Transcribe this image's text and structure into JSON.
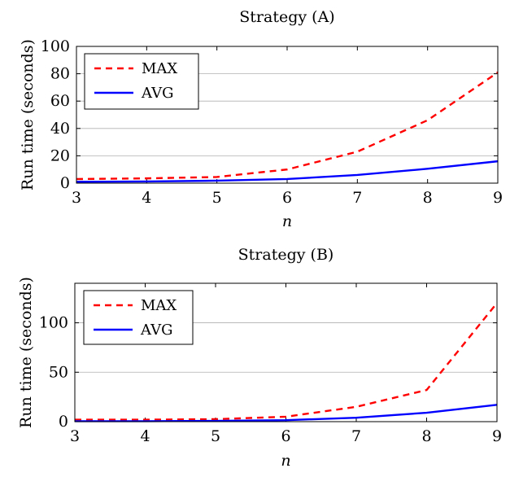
{
  "chart_data": [
    {
      "type": "line",
      "title": "Strategy (A)",
      "xlabel": "n",
      "ylabel": "Run time (seconds)",
      "x": [
        3,
        4,
        5,
        6,
        7,
        8,
        9
      ],
      "xlim": [
        3,
        9
      ],
      "ylim": [
        0,
        100
      ],
      "xticks": [
        "3",
        "4",
        "5",
        "6",
        "7",
        "8",
        "9"
      ],
      "yticks": [
        "0",
        "20",
        "40",
        "60",
        "80",
        "100"
      ],
      "ytick_values": [
        0,
        20,
        40,
        60,
        80,
        100
      ],
      "grid": "horizontal",
      "legend_position": "top-left",
      "series": [
        {
          "name": "MAX",
          "values": [
            3,
            3.5,
            4.5,
            10,
            23,
            46,
            81
          ],
          "color": "#ff0000",
          "style": "dashed"
        },
        {
          "name": "AVG",
          "values": [
            1,
            1.2,
            1.8,
            3,
            6,
            10.5,
            16
          ],
          "color": "#0000ff",
          "style": "solid"
        }
      ]
    },
    {
      "type": "line",
      "title": "Strategy (B)",
      "xlabel": "n",
      "ylabel": "Run time (seconds)",
      "x": [
        3,
        4,
        5,
        6,
        7,
        8,
        9
      ],
      "xlim": [
        3,
        9
      ],
      "ylim": [
        0,
        140
      ],
      "xticks": [
        "3",
        "4",
        "5",
        "6",
        "7",
        "8",
        "9"
      ],
      "yticks": [
        "0",
        "50",
        "100"
      ],
      "ytick_values": [
        0,
        50,
        100
      ],
      "grid": "horizontal",
      "legend_position": "top-left",
      "series": [
        {
          "name": "MAX",
          "values": [
            2,
            2,
            2.5,
            5,
            15,
            32,
            120
          ],
          "color": "#ff0000",
          "style": "dashed"
        },
        {
          "name": "AVG",
          "values": [
            0.5,
            0.5,
            0.8,
            1.5,
            4,
            9,
            17
          ],
          "color": "#0000ff",
          "style": "solid"
        }
      ]
    }
  ]
}
